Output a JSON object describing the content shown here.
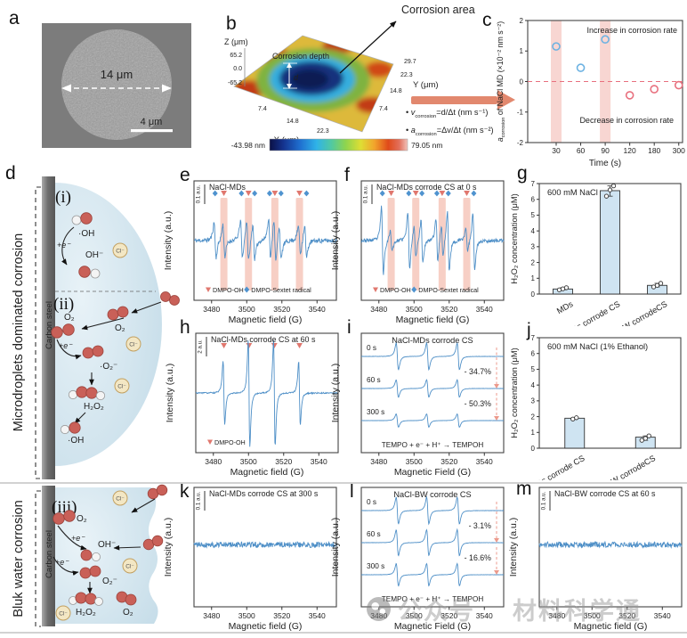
{
  "figure": {
    "panel_labels": {
      "a": "a",
      "b": "b",
      "c": "c",
      "d": "d",
      "e": "e",
      "f": "f",
      "g": "g",
      "h": "h",
      "i": "i",
      "j": "j",
      "k": "k",
      "l": "l",
      "m": "m"
    },
    "watermark": {
      "prefix": "公众号",
      "name": "材料科学通"
    }
  },
  "colors": {
    "salmon": "#e2886e",
    "accent_blue": "#6cb2e2",
    "accent_red": "#e8707e",
    "spectrum_blue": "#4e8fc7"
  },
  "panel_a": {
    "diameter": "14 μm",
    "scalebar": "4 μm"
  },
  "panel_b": {
    "corrosion_area": "Corrosion area",
    "corrosion_depth": "Corrosion depth",
    "d_symbol": "d",
    "z_label": "Z (μm)",
    "z_ticks": [
      "65.2",
      "0.0",
      "-65.2"
    ],
    "x_label": "X (μm)",
    "x_ticks": [
      "7.4",
      "14.8",
      "22.3",
      "29.7"
    ],
    "y_label": "Y (μm)",
    "y_ticks": [
      "7.4",
      "14.8",
      "22.3",
      "29.7"
    ],
    "cbar_min": "-43.98 nm",
    "cbar_max": "79.05 nm"
  },
  "formulas": {
    "bullet": "•",
    "v_sym": "v",
    "v_sub": "corrosion",
    "v_expr": "=d/Δt (nm s⁻¹)",
    "a_sym": "a",
    "a_sub": "corrosion",
    "a_expr": "=Δv/Δt (nm s⁻²)"
  },
  "panel_d": {
    "section_top": "Microdroplets dominated corrosion",
    "section_bottom": "Bluk water corrosion",
    "carbon_steel": "Carbon steel",
    "step_i": "(i)",
    "step_ii": "(ii)",
    "step_iii": "(iii)",
    "oh_rad": "·OH",
    "oh_ion": "OH⁻",
    "e": "+e⁻",
    "o2": "O₂",
    "o2_rad": "·O₂⁻",
    "o2_ion": "O₂⁻",
    "h2o2": "H₂O₂",
    "cl": "Cl⁻"
  },
  "chart_data": [
    {
      "panel": "c",
      "type": "scatter",
      "xlabel": "Time (s)",
      "ylabel_sym": "a",
      "ylabel_sub": "corrosion",
      "ylabel_rest": "of NaCl MD (×10⁻² nm s⁻²)",
      "x_categories": [
        30,
        60,
        90,
        120,
        180,
        300
      ],
      "ylim": [
        -2,
        2
      ],
      "yticks": [
        -2,
        -1,
        0,
        1,
        2
      ],
      "series": [
        {
          "name": "Increase in corrosion rate",
          "color": "#6cb2e2",
          "points": [
            [
              30,
              1.15
            ],
            [
              60,
              0.45
            ],
            [
              90,
              1.38
            ]
          ]
        },
        {
          "name": "Decrease in corrosion rate",
          "color": "#e8707e",
          "points": [
            [
              120,
              -0.45
            ],
            [
              180,
              -0.25
            ],
            [
              300,
              -0.12
            ]
          ]
        }
      ],
      "bands_x": [
        30,
        90
      ],
      "band_color": "#f2b5ad",
      "zero_line_color": "#e8707e",
      "grid": false,
      "legend_position": "inside"
    },
    {
      "panel": "e",
      "type": "epr",
      "kind": "single",
      "title": "NaCl-MDs",
      "scalebar": "0.1 a.u.",
      "ylabel": "Intensity (a.u.)",
      "xlabel": "Magnetic field (G)",
      "xrange": [
        3470,
        3551
      ],
      "xticks": [
        3480,
        3500,
        3520,
        3540
      ],
      "markers": {
        "diamond": [
          3482,
          3497,
          3504.5,
          3513,
          3519.5,
          3534
        ],
        "triangle": [
          3487,
          3501,
          3516,
          3530
        ]
      },
      "bands": [
        3487,
        3501,
        3516,
        3530
      ],
      "peaks": [
        [
          3482,
          0.55
        ],
        [
          3487,
          0.5
        ],
        [
          3497,
          0.6
        ],
        [
          3500.5,
          0.65
        ],
        [
          3504,
          0.55
        ],
        [
          3513,
          0.65
        ],
        [
          3516,
          0.7
        ],
        [
          3519,
          0.55
        ],
        [
          3530,
          0.45
        ],
        [
          3533.5,
          0.5
        ]
      ],
      "peak_width": 1.0,
      "noise": 0.07,
      "amp": 36,
      "seed": 11,
      "line_color": "#4e8fc7",
      "band_color": "#ef9f8c",
      "triangle_color": "#e0776e",
      "diamond_color": "#4f93cf",
      "legend": [
        {
          "marker": "triangle",
          "label": "DMPO-OH",
          "color": "#e0776e"
        },
        {
          "marker": "diamond",
          "label": "DMPO-Sextet radical",
          "color": "#4f93cf"
        }
      ]
    },
    {
      "panel": "f",
      "type": "epr",
      "kind": "single",
      "title": "NaCl-MDs corrode CS at 0 s",
      "scalebar": "0.1 a.u.",
      "ylabel": "Intensity (a.u.)",
      "xlabel": "Magnetic field (G)",
      "xrange": [
        3470,
        3551
      ],
      "xticks": [
        3480,
        3500,
        3520,
        3540
      ],
      "markers": {
        "diamond": [
          3482,
          3497,
          3504.5,
          3513,
          3519.5,
          3534
        ],
        "triangle": [
          3487,
          3501,
          3516,
          3530
        ]
      },
      "bands": [
        3487,
        3501,
        3516,
        3530
      ],
      "peaks": [
        [
          3482,
          0.95
        ],
        [
          3487,
          0.3
        ],
        [
          3497,
          0.8
        ],
        [
          3500.5,
          0.45
        ],
        [
          3504.5,
          0.6
        ],
        [
          3513,
          0.6
        ],
        [
          3516,
          0.45
        ],
        [
          3519.5,
          0.85
        ],
        [
          3530,
          0.35
        ],
        [
          3534,
          0.8
        ]
      ],
      "peak_width": 0.9,
      "noise": 0.05,
      "amp": 40,
      "seed": 23,
      "line_color": "#4e8fc7",
      "band_color": "#ef9f8c",
      "triangle_color": "#e0776e",
      "diamond_color": "#4f93cf",
      "legend": [
        {
          "marker": "triangle",
          "label": "DMPO-OH",
          "color": "#e0776e"
        },
        {
          "marker": "diamond",
          "label": "DMPO-Sextet radical",
          "color": "#4f93cf"
        }
      ]
    },
    {
      "panel": "g",
      "type": "bar",
      "title": "600 mM NaCl",
      "ylabel": "H₂O₂ concentration (μM)",
      "ylim": [
        0,
        7
      ],
      "yticks": [
        0,
        1,
        2,
        3,
        4,
        5,
        6,
        7
      ],
      "categories": [
        "MDs",
        "MDs corrode CS",
        "BW corrodeCS"
      ],
      "values": [
        0.32,
        6.55,
        0.55
      ],
      "points": [
        [
          0.27,
          0.33,
          0.4
        ],
        [
          6.2,
          6.6,
          6.85
        ],
        [
          0.45,
          0.55,
          0.68
        ]
      ],
      "bar_color": "#cfe4f2"
    },
    {
      "panel": "h",
      "type": "epr",
      "kind": "single",
      "title": "NaCl-MDs corrode CS at 60 s",
      "scalebar": "2 a.u.",
      "ylabel": "Intensity (a.u.)",
      "xlabel": "Magnetic field (G)",
      "xrange": [
        3470,
        3551
      ],
      "xticks": [
        3480,
        3500,
        3520,
        3540
      ],
      "markers": {
        "triangle": [
          3486,
          3500.3,
          3514.7,
          3529
        ]
      },
      "peaks": [
        [
          3486,
          0.6
        ],
        [
          3500.3,
          1
        ],
        [
          3514.7,
          1
        ],
        [
          3529,
          0.6
        ]
      ],
      "peak_width": 0.8,
      "noise": 0.012,
      "amp": 60,
      "seed": 31,
      "line_color": "#4e8fc7",
      "band_color": "#ef9f8c",
      "triangle_color": "#e0776e",
      "diamond_color": "#4f93cf",
      "legend": [
        {
          "marker": "triangle",
          "label": "DMPO-OH",
          "color": "#e0776e"
        }
      ]
    },
    {
      "panel": "i",
      "type": "epr",
      "kind": "stack",
      "title": "NaCl-MDs corrode CS",
      "ylabel": "Intensity (a.u.)",
      "xlabel": "Magnetic Field (G)",
      "xrange": [
        3470,
        3551
      ],
      "xticks": [
        3480,
        3500,
        3520,
        3540
      ],
      "peaks_x": [
        3490.5,
        3507.8,
        3525.2
      ],
      "peak_width": 1.1,
      "base_amp": 15,
      "seed": 7,
      "traces": [
        {
          "label": "0 s",
          "amp": 1
        },
        {
          "label": "60 s",
          "amp": 0.653
        },
        {
          "label": "300 s",
          "amp": 0.497
        }
      ],
      "annotations": [
        "- 34.7%",
        "- 50.3%"
      ],
      "reaction": "TEMPO + e⁻ + H⁺ → TEMPOH",
      "line_color": "#4e8fc7"
    },
    {
      "panel": "j",
      "type": "bar",
      "title": "600 mM NaCl (1% Ethanol)",
      "ylabel": "H₂O₂ concentration (μM)",
      "ylim": [
        0,
        7
      ],
      "yticks": [
        0,
        1,
        2,
        3,
        4,
        5,
        6,
        7
      ],
      "categories": [
        "MDs corrode CS",
        "BW corrodeCS"
      ],
      "values": [
        1.9,
        0.7
      ],
      "points": [
        [
          1.85,
          1.93
        ],
        [
          0.5,
          0.62,
          0.78
        ]
      ],
      "bar_color": "#cfe4f2"
    },
    {
      "panel": "k",
      "type": "epr",
      "kind": "single",
      "title": "NaCl-MDs corrode CS at 300 s",
      "scalebar": "0.1 a.u.",
      "ylabel": "Intensity (a.u.)",
      "xlabel": "Magnetic field (G)",
      "xrange": [
        3470,
        3551
      ],
      "xticks": [
        3480,
        3500,
        3520,
        3540
      ],
      "peaks": [],
      "noise": 1,
      "amp": 3.2,
      "seed": 41,
      "base": 0.48,
      "line_color": "#4e8fc7"
    },
    {
      "panel": "l",
      "type": "epr",
      "kind": "stack",
      "title": "NaCl-BW corrode CS",
      "ylabel": "Intensity (a.u.)",
      "xlabel": "Magnetic Field (G)",
      "xrange": [
        3470,
        3551
      ],
      "xticks": [
        3480,
        3500,
        3520,
        3540
      ],
      "peaks_x": [
        3490.5,
        3507.8,
        3525.2
      ],
      "peak_width": 1.1,
      "base_amp": 15,
      "seed": 19,
      "traces": [
        {
          "label": "0 s",
          "amp": 1
        },
        {
          "label": "60 s",
          "amp": 0.969
        },
        {
          "label": "300 s",
          "amp": 0.834
        }
      ],
      "annotations": [
        "- 3.1%",
        "- 16.6%"
      ],
      "reaction": "TEMPO + e⁻ + H⁺ → TEMPOH",
      "line_color": "#4e8fc7"
    },
    {
      "panel": "m",
      "type": "epr",
      "kind": "single",
      "title": "NaCl-BW corrode CS at 60 s",
      "scalebar": "0.1 a.u.",
      "ylabel": "Intensity (a.u.)",
      "xlabel": "Magnetic field (G)",
      "xrange": [
        3470,
        3551
      ],
      "xticks": [
        3480,
        3500,
        3520,
        3540
      ],
      "peaks": [],
      "noise": 1,
      "amp": 3.2,
      "seed": 57,
      "base": 0.48,
      "line_color": "#4e8fc7"
    }
  ]
}
